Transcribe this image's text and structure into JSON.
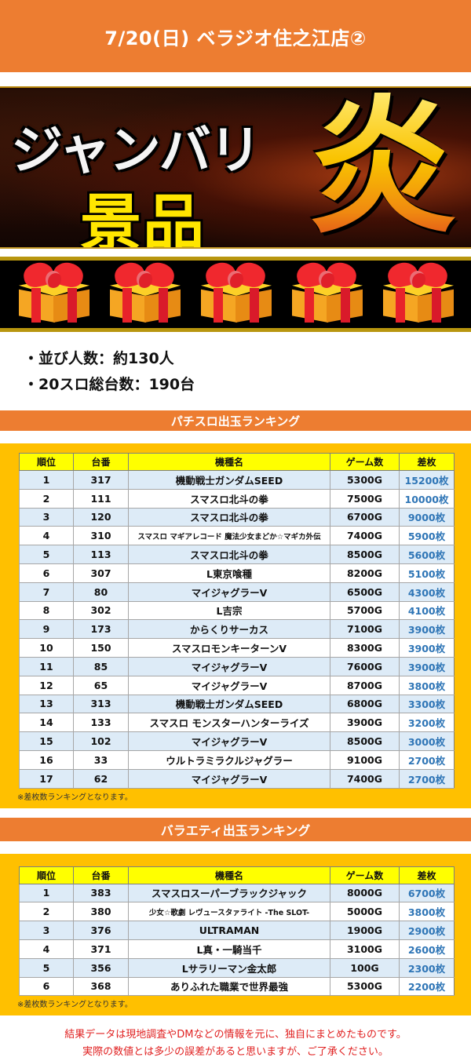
{
  "header": {
    "title": "7/20(日) ベラジオ住之江店②"
  },
  "banner": {
    "line1": "ジャンバリ",
    "line2": "景品",
    "kanji": "炎",
    "colors": {
      "white_text": "#f4f4f4",
      "yellow_text": "#ffe600",
      "gold": "#f9c300"
    }
  },
  "gifts": {
    "count": 5,
    "icon": "gift-box-icon"
  },
  "stats": {
    "line1": "・並び人数：約130人",
    "line2": "・20スロ総台数：190台"
  },
  "pachislot_ranking": {
    "title": "パチスロ出玉ランキング",
    "columns": [
      "順位",
      "台番",
      "機種名",
      "ゲーム数",
      "差枚"
    ],
    "rows": [
      [
        "1",
        "317",
        "機動戦士ガンダムSEED",
        "5300G",
        "15200枚"
      ],
      [
        "2",
        "111",
        "スマスロ北斗の拳",
        "7500G",
        "10000枚"
      ],
      [
        "3",
        "120",
        "スマスロ北斗の拳",
        "6700G",
        "9000枚"
      ],
      [
        "4",
        "310",
        "スマスロ マギアレコード 魔法少女まどか☆マギカ外伝",
        "7400G",
        "5900枚"
      ],
      [
        "5",
        "113",
        "スマスロ北斗の拳",
        "8500G",
        "5600枚"
      ],
      [
        "6",
        "307",
        "L東京喰種",
        "8200G",
        "5100枚"
      ],
      [
        "7",
        "80",
        "マイジャグラーV",
        "6500G",
        "4300枚"
      ],
      [
        "8",
        "302",
        "L吉宗",
        "5700G",
        "4100枚"
      ],
      [
        "9",
        "173",
        "からくりサーカス",
        "7100G",
        "3900枚"
      ],
      [
        "10",
        "150",
        "スマスロモンキーターンV",
        "8300G",
        "3900枚"
      ],
      [
        "11",
        "85",
        "マイジャグラーV",
        "7600G",
        "3900枚"
      ],
      [
        "12",
        "65",
        "マイジャグラーV",
        "8700G",
        "3800枚"
      ],
      [
        "13",
        "313",
        "機動戦士ガンダムSEED",
        "6800G",
        "3300枚"
      ],
      [
        "14",
        "133",
        "スマスロ モンスターハンターライズ",
        "3900G",
        "3200枚"
      ],
      [
        "15",
        "102",
        "マイジャグラーV",
        "8500G",
        "3000枚"
      ],
      [
        "16",
        "33",
        "ウルトラミラクルジャグラー",
        "9100G",
        "2700枚"
      ],
      [
        "17",
        "62",
        "マイジャグラーV",
        "7400G",
        "2700枚"
      ]
    ],
    "footnote": "※差枚数ランキングとなります。"
  },
  "variety_ranking": {
    "title": "バラエティ出玉ランキング",
    "columns": [
      "順位",
      "台番",
      "機種名",
      "ゲーム数",
      "差枚"
    ],
    "rows": [
      [
        "1",
        "383",
        "スマスロスーパーブラックジャック",
        "8000G",
        "6700枚"
      ],
      [
        "2",
        "380",
        "少女☆歌劇 レヴュースタァライト -The SLOT-",
        "5000G",
        "3800枚"
      ],
      [
        "3",
        "376",
        "ULTRAMAN",
        "1900G",
        "2900枚"
      ],
      [
        "4",
        "371",
        "L真・一騎当千",
        "3100G",
        "2600枚"
      ],
      [
        "5",
        "356",
        "Lサラリーマン金太郎",
        "100G",
        "2300枚"
      ],
      [
        "6",
        "368",
        "ありふれた職業で世界最強",
        "5300G",
        "2200枚"
      ]
    ],
    "footnote": "※差枚数ランキングとなります。"
  },
  "disclaimer": {
    "line1": "結果データは現地調査やDMなどの情報を元に、独自にまとめたものです。",
    "line2": "実際の数値とは多少の誤差があると思いますが、ご了承ください。"
  },
  "colors": {
    "header_orange": "#ed7d31",
    "panel_yellow": "#ffc000",
    "table_header_yellow": "#ffff00",
    "row_blue": "#ddebf7",
    "diff_blue": "#2e75b6",
    "disclaimer_red": "#e02020"
  }
}
